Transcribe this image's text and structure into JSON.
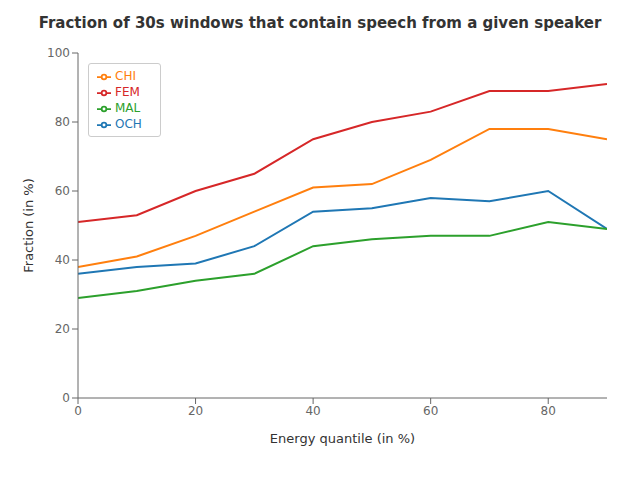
{
  "chart_data": {
    "type": "line",
    "title": "Fraction of 30s windows that contain speech from a given speaker",
    "xlabel": "Energy quantile (in %)",
    "ylabel": "Fraction (in %)",
    "x": [
      0,
      10,
      20,
      30,
      40,
      50,
      60,
      70,
      80,
      90
    ],
    "series": [
      {
        "name": "OCH",
        "color": "#1f77b4",
        "values": [
          36,
          38,
          39,
          44,
          54,
          55,
          58,
          57,
          60,
          49
        ]
      },
      {
        "name": "CHI",
        "color": "#ff7f0e",
        "values": [
          38,
          41,
          47,
          54,
          61,
          62,
          69,
          78,
          78,
          75
        ]
      },
      {
        "name": "MAL",
        "color": "#2ca02c",
        "values": [
          29,
          31,
          34,
          36,
          44,
          46,
          47,
          47,
          51,
          49
        ]
      },
      {
        "name": "FEM",
        "color": "#d62728",
        "values": [
          51,
          53,
          60,
          65,
          75,
          80,
          83,
          89,
          89,
          91
        ]
      }
    ],
    "xlim": [
      0,
      90
    ],
    "ylim": [
      0,
      100
    ],
    "xticks": [
      0,
      20,
      40,
      60,
      80
    ],
    "yticks": [
      0,
      20,
      40,
      60,
      80,
      100
    ],
    "legend": "upper left",
    "grid": false
  }
}
